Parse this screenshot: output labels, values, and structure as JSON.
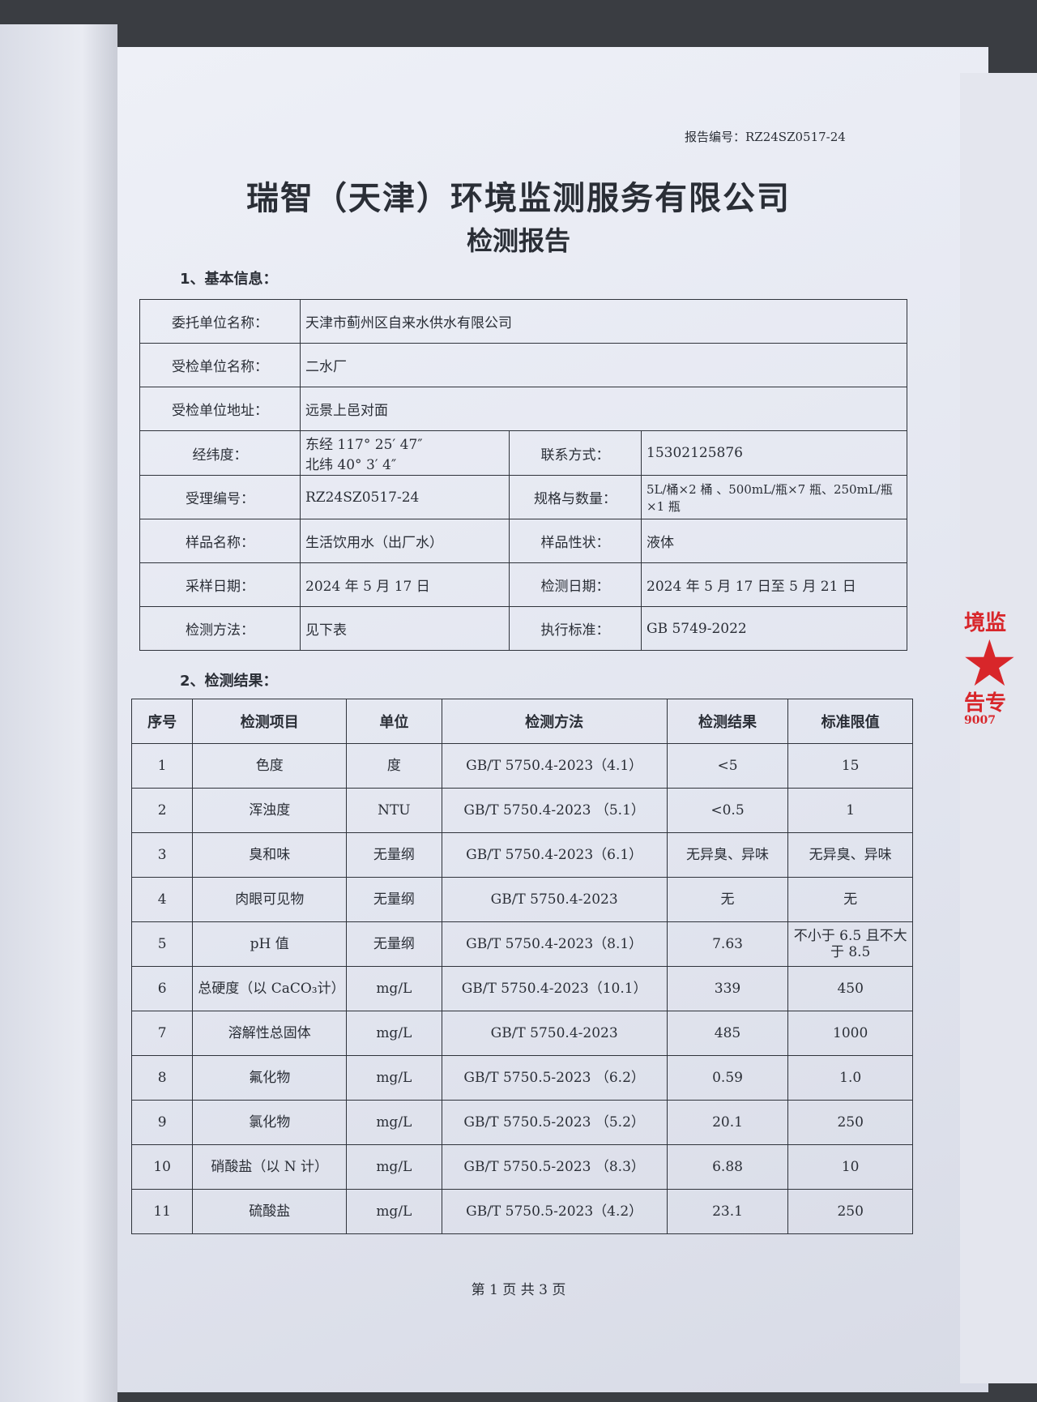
{
  "report_no_label": "报告编号：RZ24SZ0517-24",
  "company": "瑞智（天津）环境监测服务有限公司",
  "doc_title": "检测报告",
  "section1": "1、基本信息：",
  "basic": {
    "client_label": "委托单位名称：",
    "client": "天津市蓟州区自来水供水有限公司",
    "inspected_label": "受检单位名称：",
    "inspected": "二水厂",
    "address_label": "受检单位地址：",
    "address": "远景上邑对面",
    "coord_label": "经纬度：",
    "lon": "东经 117° 25′ 47″",
    "lat": "北纬 40° 3′ 4″",
    "contact_label": "联系方式：",
    "contact": "15302125876",
    "accept_label": "受理编号：",
    "accept": "RZ24SZ0517-24",
    "spec_label": "规格与数量：",
    "spec": "5L/桶×2 桶 、500mL/瓶×7 瓶、250mL/瓶×1 瓶",
    "sample_label": "样品名称：",
    "sample": "生活饮用水（出厂水）",
    "state_label": "样品性状：",
    "state": "液体",
    "sdate_label": "采样日期：",
    "sdate": "2024 年 5 月 17 日",
    "tdate_label": "检测日期：",
    "tdate": "2024 年 5 月 17 日至 5 月 21 日",
    "method_label": "检测方法：",
    "method": "见下表",
    "std_label": "执行标准：",
    "std": "GB 5749-2022"
  },
  "section2": "2、检测结果：",
  "results": {
    "headers": [
      "序号",
      "检测项目",
      "单位",
      "检测方法",
      "检测结果",
      "标准限值"
    ],
    "rows": [
      [
        "1",
        "色度",
        "度",
        "GB/T 5750.4-2023（4.1）",
        "<5",
        "15"
      ],
      [
        "2",
        "浑浊度",
        "NTU",
        "GB/T 5750.4-2023 （5.1）",
        "<0.5",
        "1"
      ],
      [
        "3",
        "臭和味",
        "无量纲",
        "GB/T 5750.4-2023（6.1）",
        "无异臭、异味",
        "无异臭、异味"
      ],
      [
        "4",
        "肉眼可见物",
        "无量纲",
        "GB/T 5750.4-2023",
        "无",
        "无"
      ],
      [
        "5",
        "pH 值",
        "无量纲",
        "GB/T 5750.4-2023（8.1）",
        "7.63",
        "不小于 6.5 且不大于 8.5"
      ],
      [
        "6",
        "总硬度（以 CaCO₃计）",
        "mg/L",
        "GB/T 5750.4-2023（10.1）",
        "339",
        "450"
      ],
      [
        "7",
        "溶解性总固体",
        "mg/L",
        "GB/T 5750.4-2023",
        "485",
        "1000"
      ],
      [
        "8",
        "氟化物",
        "mg/L",
        "GB/T 5750.5-2023 （6.2）",
        "0.59",
        "1.0"
      ],
      [
        "9",
        "氯化物",
        "mg/L",
        "GB/T 5750.5-2023 （5.2）",
        "20.1",
        "250"
      ],
      [
        "10",
        "硝酸盐（以 N 计）",
        "mg/L",
        "GB/T 5750.5-2023 （8.3）",
        "6.88",
        "10"
      ],
      [
        "11",
        "硫酸盐",
        "mg/L",
        "GB/T 5750.5-2023（4.2）",
        "23.1",
        "250"
      ]
    ]
  },
  "footer": "第 1 页 共 3 页",
  "stamp": {
    "text_top": "境监",
    "text_bottom": "告专",
    "number": "9007",
    "color": "#d8262a"
  }
}
